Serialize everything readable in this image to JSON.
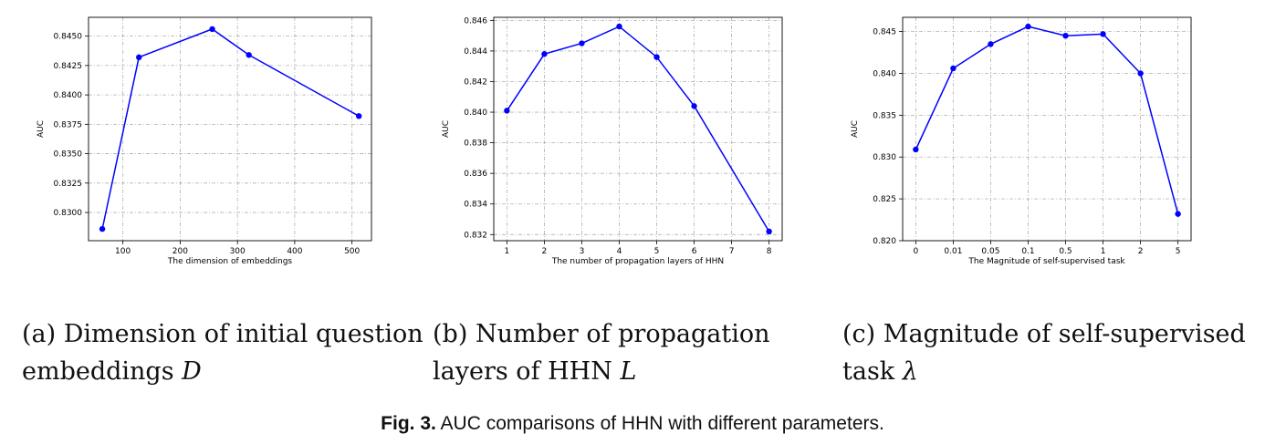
{
  "chart_data": [
    {
      "type": "line",
      "xlabel": "The dimension of embeddings",
      "ylabel": "AUC",
      "x_scale": "linear",
      "xlim": [
        40,
        534
      ],
      "xticks": [
        100,
        200,
        300,
        400,
        500
      ],
      "xtick_labels": [
        "100",
        "200",
        "300",
        "400",
        "500"
      ],
      "ylim": [
        0.8276,
        0.8466
      ],
      "yticks": [
        0.83,
        0.8325,
        0.835,
        0.8375,
        0.84,
        0.8425,
        0.845
      ],
      "ytick_labels": [
        "0.8300",
        "0.8325",
        "0.8350",
        "0.8375",
        "0.8400",
        "0.8425",
        "0.8450"
      ],
      "grid": true,
      "color": "#0000ff",
      "series": [
        {
          "x": [
            64,
            128,
            256,
            320,
            512
          ],
          "y": [
            0.8286,
            0.8432,
            0.8456,
            0.8434,
            0.8382
          ]
        }
      ]
    },
    {
      "type": "line",
      "xlabel": "The number of propagation layers of HHN",
      "ylabel": "AUC",
      "x_scale": "linear",
      "xlim": [
        0.65,
        8.35
      ],
      "xticks": [
        1,
        2,
        3,
        4,
        5,
        6,
        7,
        8
      ],
      "xtick_labels": [
        "1",
        "2",
        "3",
        "4",
        "5",
        "6",
        "7",
        "8"
      ],
      "ylim": [
        0.8316,
        0.8462
      ],
      "yticks": [
        0.832,
        0.834,
        0.836,
        0.838,
        0.84,
        0.842,
        0.844,
        0.846
      ],
      "ytick_labels": [
        "0.832",
        "0.834",
        "0.836",
        "0.838",
        "0.840",
        "0.842",
        "0.844",
        "0.846"
      ],
      "grid": true,
      "color": "#0000ff",
      "series": [
        {
          "x": [
            1,
            2,
            3,
            4,
            5,
            6,
            8
          ],
          "y": [
            0.8401,
            0.8438,
            0.8445,
            0.8456,
            0.8436,
            0.8404,
            0.8322
          ]
        }
      ]
    },
    {
      "type": "line",
      "xlabel": "The Magnitude of self-supervised task",
      "ylabel": "AUC",
      "x_scale": "categorical",
      "categories": [
        "0",
        "0.01",
        "0.05",
        "0.1",
        "0.5",
        "1",
        "2",
        "5"
      ],
      "ylim": [
        0.82,
        0.8467
      ],
      "yticks": [
        0.82,
        0.825,
        0.83,
        0.835,
        0.84,
        0.845
      ],
      "ytick_labels": [
        "0.820",
        "0.825",
        "0.830",
        "0.835",
        "0.840",
        "0.845"
      ],
      "grid": true,
      "color": "#0000ff",
      "series": [
        {
          "values": [
            0.8309,
            0.8406,
            0.8435,
            0.8456,
            0.8445,
            0.8447,
            0.84,
            0.8232
          ]
        }
      ]
    }
  ],
  "subcaptions": {
    "a": {
      "label": "(a)",
      "text": "Dimension of initial question embeddings",
      "var": "D"
    },
    "b": {
      "label": "(b)",
      "text": "Number of propagation layers of HHN",
      "var": "L"
    },
    "c": {
      "label": "(c)",
      "text": "Magnitude of self-supervised task",
      "var": "λ"
    }
  },
  "figure_caption": {
    "label": "Fig. 3.",
    "text": "AUC comparisons of HHN with different parameters."
  }
}
